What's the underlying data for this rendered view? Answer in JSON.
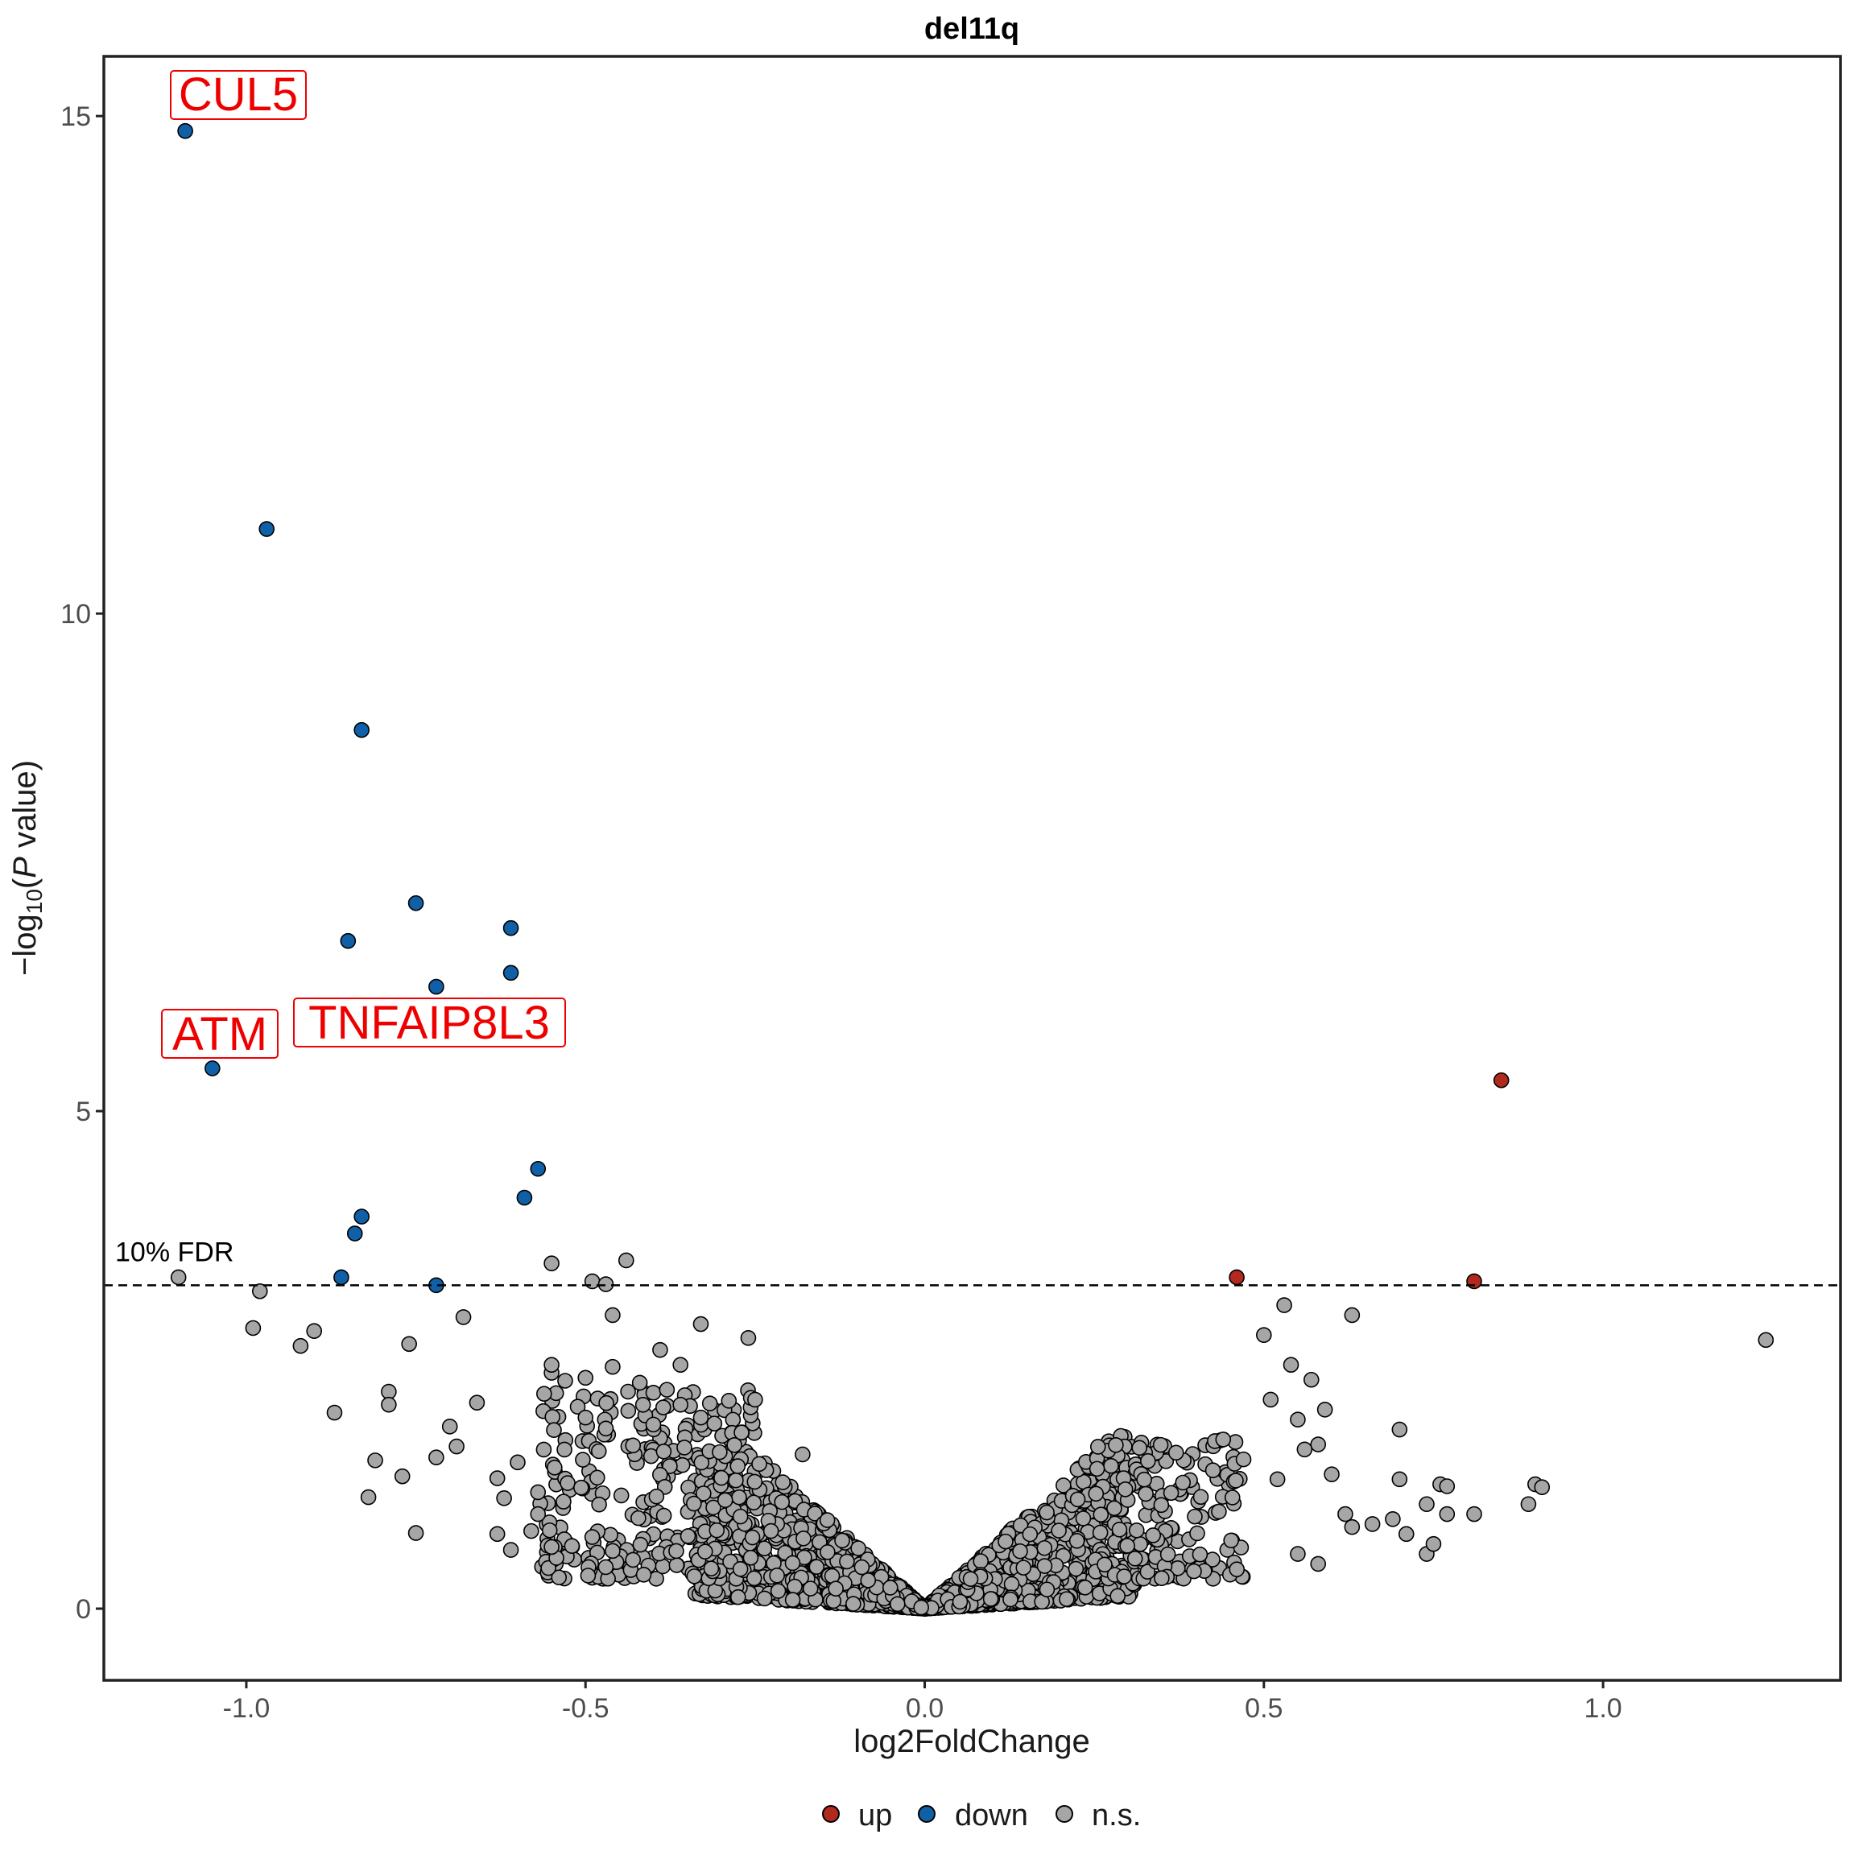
{
  "chart_data": {
    "type": "scatter",
    "title": "del11q",
    "xlabel": "log2FoldChange",
    "ylabel": {
      "prefix": "−log",
      "subscript": "10",
      "open": "(",
      "italic": "P",
      "suffix": " value)"
    },
    "xlim": [
      -1.21,
      1.35
    ],
    "ylim": [
      -0.72,
      15.6
    ],
    "x_ticks": [
      {
        "value": -1.0,
        "label": "-1.0"
      },
      {
        "value": -0.5,
        "label": "-0.5"
      },
      {
        "value": 0.0,
        "label": "0.0"
      },
      {
        "value": 0.5,
        "label": "0.5"
      },
      {
        "value": 1.0,
        "label": "1.0"
      }
    ],
    "y_ticks": [
      {
        "value": 0,
        "label": "0"
      },
      {
        "value": 5,
        "label": "5"
      },
      {
        "value": 10,
        "label": "10"
      },
      {
        "value": 15,
        "label": "15"
      }
    ],
    "grid": false,
    "threshold": {
      "y": 3.25,
      "label": "10% FDR",
      "style": "dashed"
    },
    "legend": {
      "position": "bottom",
      "entries": [
        {
          "key": "up",
          "label": "up",
          "color": "#b2291e"
        },
        {
          "key": "down",
          "label": "down",
          "color": "#1060a8"
        },
        {
          "key": "ns",
          "label": "n.s.",
          "color": "#a6a6a6"
        }
      ]
    },
    "series": [
      {
        "name": "down",
        "color": "#1060a8",
        "points": [
          [
            -1.09,
            14.85
          ],
          [
            -0.97,
            10.85
          ],
          [
            -0.83,
            8.83
          ],
          [
            -0.75,
            7.09
          ],
          [
            -0.61,
            6.84
          ],
          [
            -0.85,
            6.71
          ],
          [
            -0.61,
            6.39
          ],
          [
            -0.72,
            6.25
          ],
          [
            -1.05,
            5.43
          ],
          [
            -0.57,
            4.42
          ],
          [
            -0.59,
            4.13
          ],
          [
            -0.83,
            3.94
          ],
          [
            -0.84,
            3.77
          ],
          [
            -0.86,
            3.33
          ],
          [
            -0.72,
            3.25
          ]
        ]
      },
      {
        "name": "up",
        "color": "#b2291e",
        "points": [
          [
            0.85,
            5.31
          ],
          [
            0.46,
            3.33
          ],
          [
            0.81,
            3.29
          ]
        ]
      },
      {
        "name": "n.s.",
        "color": "#a6a6a6",
        "points": [
          [
            -1.1,
            3.33
          ],
          [
            -0.98,
            3.19
          ],
          [
            -0.99,
            2.82
          ],
          [
            -0.9,
            2.79
          ],
          [
            -0.92,
            2.64
          ],
          [
            -0.76,
            2.66
          ],
          [
            -0.55,
            3.47
          ],
          [
            -0.49,
            3.29
          ],
          [
            -0.47,
            3.26
          ],
          [
            -0.44,
            3.5
          ],
          [
            -0.46,
            2.95
          ],
          [
            -0.68,
            2.93
          ],
          [
            -0.26,
            2.72
          ],
          [
            -0.33,
            2.86
          ],
          [
            -0.87,
            1.97
          ],
          [
            -0.79,
            2.18
          ],
          [
            -0.79,
            2.05
          ],
          [
            -0.66,
            2.07
          ],
          [
            -0.81,
            1.49
          ],
          [
            -0.82,
            1.12
          ],
          [
            -0.77,
            1.33
          ],
          [
            -0.75,
            0.76
          ],
          [
            -0.6,
            1.47
          ],
          [
            -0.55,
            2.37
          ],
          [
            -0.53,
            2.29
          ],
          [
            -0.5,
            1.92
          ],
          [
            -0.47,
            1.81
          ],
          [
            -0.25,
            2.1
          ],
          [
            -0.63,
            1.31
          ],
          [
            -0.62,
            1.11
          ],
          [
            -0.63,
            0.75
          ],
          [
            -0.61,
            0.59
          ],
          [
            -0.52,
            0.63
          ],
          [
            -0.55,
            2.45
          ],
          [
            -0.5,
            2.32
          ],
          [
            -0.42,
            2.27
          ],
          [
            -0.4,
            2.17
          ],
          [
            -0.46,
            2.43
          ],
          [
            -0.39,
            2.6
          ],
          [
            -0.36,
            2.45
          ],
          [
            -0.38,
            2.2
          ],
          [
            -0.36,
            2.05
          ],
          [
            -0.4,
            1.85
          ],
          [
            -0.43,
            1.64
          ],
          [
            -0.33,
            1.92
          ],
          [
            -0.31,
            1.86
          ],
          [
            -0.27,
            1.77
          ],
          [
            -0.18,
            1.55
          ],
          [
            -0.7,
            1.83
          ],
          [
            -0.72,
            1.52
          ],
          [
            -0.69,
            1.63
          ],
          [
            -0.57,
            1.17
          ],
          [
            -0.57,
            0.95
          ],
          [
            -0.58,
            0.78
          ],
          [
            -0.55,
            0.62
          ],
          [
            -0.49,
            0.72
          ],
          [
            -0.46,
            0.58
          ],
          [
            -0.43,
            0.49
          ]
        ]
      }
    ]
  }
}
